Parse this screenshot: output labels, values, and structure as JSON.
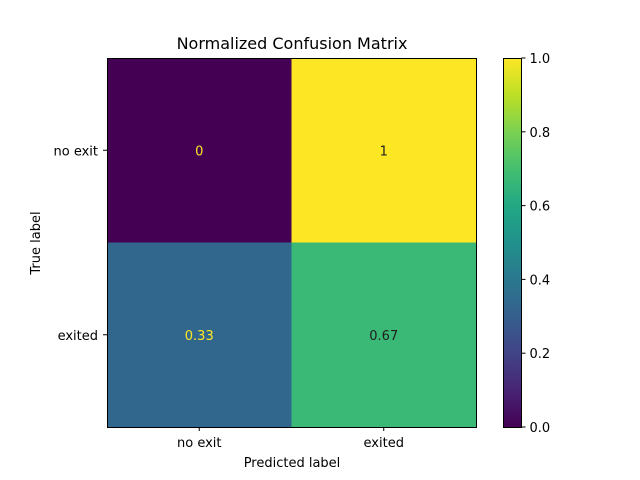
{
  "chart_data": {
    "type": "heatmap",
    "title": "Normalized Confusion Matrix",
    "xlabel": "Predicted label",
    "ylabel": "True label",
    "x_categories": [
      "no exit",
      "exited"
    ],
    "y_categories": [
      "no exit",
      "exited"
    ],
    "values": [
      [
        0,
        1
      ],
      [
        0.33,
        0.67
      ]
    ],
    "value_labels": [
      [
        "0",
        "1"
      ],
      [
        "0.33",
        "0.67"
      ]
    ],
    "colormap": "viridis",
    "colorbar": {
      "range": [
        0,
        1
      ],
      "ticks": [
        0.0,
        0.2,
        0.4,
        0.6,
        0.8,
        1.0
      ],
      "tick_labels": [
        "0.0",
        "0.2",
        "0.4",
        "0.6",
        "0.8",
        "1.0"
      ]
    },
    "text_colors": {
      "on_dark": "#fde725",
      "on_light": "#1f1f1f"
    }
  }
}
